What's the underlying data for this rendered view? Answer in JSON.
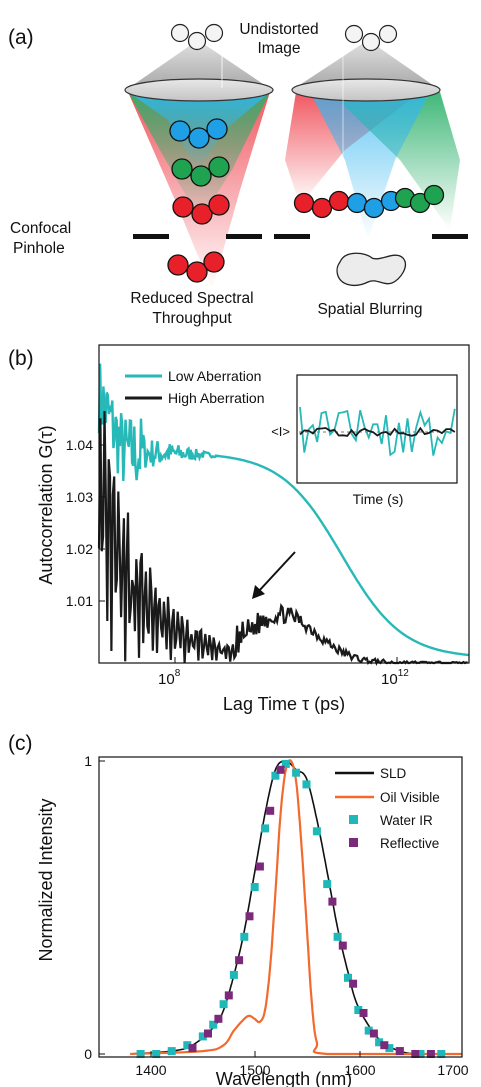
{
  "panel_a": {
    "label": "(a)",
    "undistorted_line1": "Undistorted",
    "undistorted_line2": "Image",
    "pinhole_line1": "Confocal",
    "pinhole_line2": "Pinhole",
    "reduced_line1": "Reduced Spectral",
    "reduced_line2": "Throughput",
    "spatial": "Spatial Blurring",
    "colors": {
      "blue": "#1e9fe6",
      "green": "#1fa350",
      "red": "#e8202a",
      "grey": "#9a9a9a"
    }
  },
  "panel_b": {
    "label": "(b)",
    "ylabel": "Autocorrelation G(τ)",
    "xlabel": "Lag Time τ (ps)",
    "yticks": [
      "1.01",
      "1.02",
      "1.03",
      "1.04"
    ],
    "xtick_1": "10",
    "xtick_1_exp": "8",
    "xtick_2": "10",
    "xtick_2_exp": "12",
    "inset_ylabel": "<I>",
    "inset_xlabel": "Time (s)"
  },
  "panel_c": {
    "label": "(c)",
    "ylabel": "Normalized Intensity",
    "xlabel": "Wavelength (nm)",
    "yticks": [
      "0",
      "1"
    ],
    "xticks": [
      "1400",
      "1500",
      "1600",
      "1700"
    ]
  },
  "chart_data": [
    {
      "type": "line",
      "xscale": "log",
      "xlim_log10": [
        6.8,
        13.5
      ],
      "ylim": [
        1.0,
        1.065
      ],
      "legend_placement": "top-left",
      "series": [
        {
          "name": "Low Aberration",
          "color": "#27b8b8",
          "model": "smooth decay",
          "y_plateau": 1.043,
          "half_decay_log10": 11.2,
          "y_end": 1.001
        },
        {
          "name": "High Aberration",
          "color": "#1a1a1a",
          "model": "noisy decay with bump",
          "y_peak_near_start": 1.06,
          "bump_log10": 10.1,
          "bump_y": 1.01,
          "y_end": 1.0
        }
      ]
    },
    {
      "type": "line",
      "xlim": [
        1375,
        1705
      ],
      "ylim": [
        0,
        1
      ],
      "legend_placement": "top-right",
      "series": [
        {
          "name": "SLD",
          "color": "#111111",
          "style": "line",
          "x": [
            1380,
            1420,
            1440,
            1460,
            1470,
            1480,
            1490,
            1500,
            1510,
            1520,
            1530,
            1540,
            1550,
            1560,
            1570,
            1580,
            1590,
            1600,
            1620,
            1640,
            1660,
            1700
          ],
          "y": [
            0.0,
            0.01,
            0.03,
            0.09,
            0.15,
            0.27,
            0.42,
            0.62,
            0.82,
            0.97,
            1.0,
            0.97,
            0.94,
            0.8,
            0.62,
            0.43,
            0.28,
            0.16,
            0.05,
            0.01,
            0.0,
            0.0
          ]
        },
        {
          "name": "Oil Visible",
          "color": "#f26a2e",
          "style": "line",
          "x": [
            1380,
            1450,
            1470,
            1480,
            1490,
            1495,
            1500,
            1505,
            1510,
            1515,
            1520,
            1525,
            1530,
            1535,
            1540,
            1545,
            1550,
            1555,
            1560,
            1570,
            1700
          ],
          "y": [
            0.0,
            0.01,
            0.03,
            0.08,
            0.12,
            0.13,
            0.12,
            0.11,
            0.15,
            0.3,
            0.55,
            0.82,
            0.97,
            1.0,
            0.93,
            0.72,
            0.45,
            0.18,
            0.04,
            0.0,
            0.0
          ]
        },
        {
          "name": "Water IR",
          "color": "#1fb8b8",
          "style": "square",
          "x": [
            1390,
            1405,
            1420,
            1435,
            1450,
            1460,
            1470,
            1480,
            1490,
            1500,
            1510,
            1520,
            1530,
            1540,
            1550,
            1560,
            1570,
            1580,
            1590,
            1600,
            1610,
            1620,
            1630,
            1640,
            1660,
            1680
          ],
          "y": [
            0.0,
            0.0,
            0.01,
            0.03,
            0.06,
            0.1,
            0.17,
            0.27,
            0.4,
            0.57,
            0.77,
            0.95,
            0.99,
            0.96,
            0.92,
            0.76,
            0.58,
            0.4,
            0.26,
            0.15,
            0.08,
            0.04,
            0.02,
            0.01,
            0.0,
            0.0
          ]
        },
        {
          "name": "Reflective",
          "color": "#7b2a7b",
          "style": "square",
          "x": [
            1440,
            1455,
            1465,
            1475,
            1485,
            1495,
            1505,
            1515,
            1525,
            1575,
            1585,
            1595,
            1605,
            1615,
            1625,
            1640,
            1655,
            1670
          ],
          "y": [
            0.02,
            0.07,
            0.12,
            0.2,
            0.32,
            0.47,
            0.64,
            0.83,
            0.97,
            0.52,
            0.37,
            0.24,
            0.14,
            0.07,
            0.03,
            0.01,
            0.0,
            0.0
          ]
        }
      ]
    }
  ]
}
